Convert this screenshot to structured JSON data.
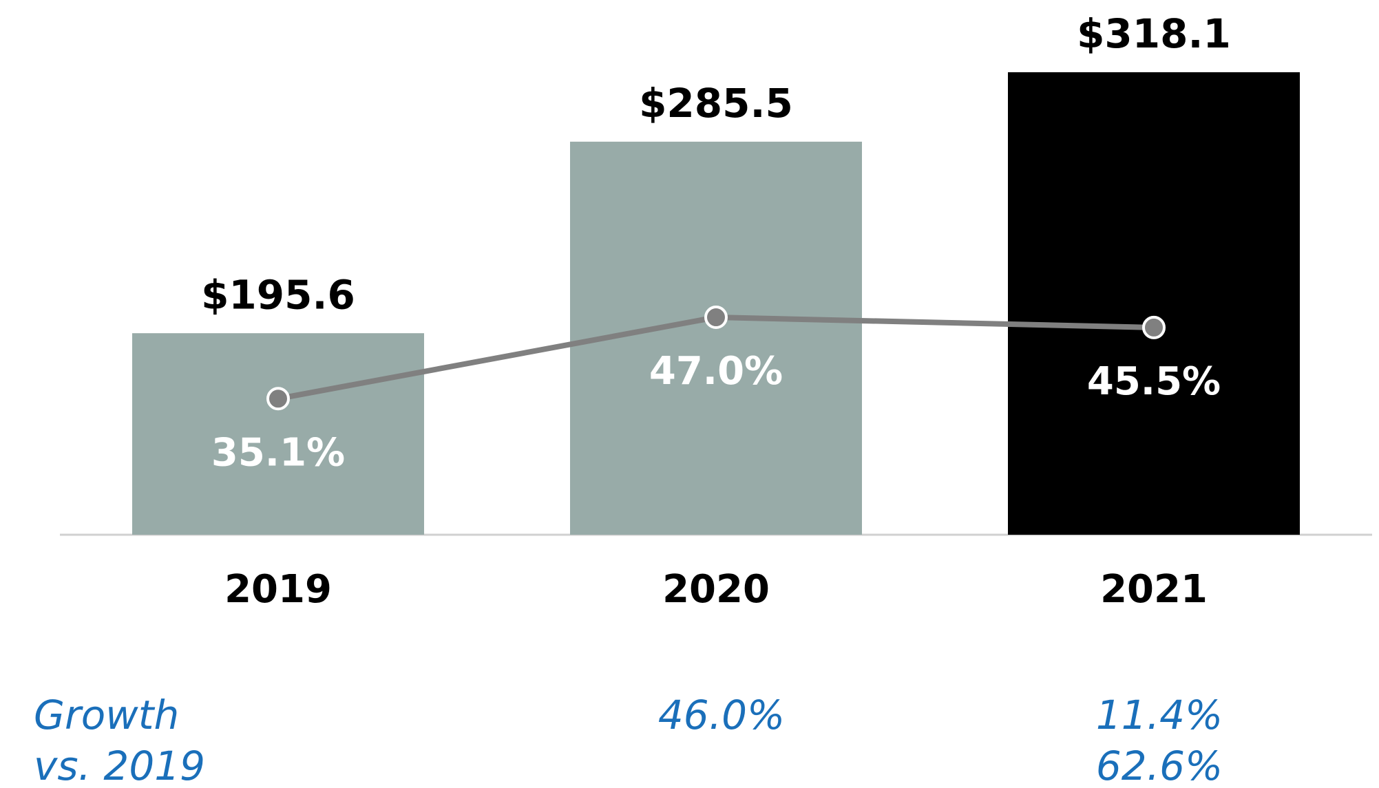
{
  "chart_data": {
    "type": "bar",
    "categories": [
      "2019",
      "2020",
      "2021"
    ],
    "ylim": [
      101,
      352
    ],
    "y2lim": [
      15.2,
      93.4
    ],
    "series": [
      {
        "name": null,
        "type": "bar",
        "colors": [
          "#98aba8",
          "#98aba8",
          "#000000"
        ],
        "values": [
          195.6,
          285.5,
          318.1
        ],
        "value_labels": [
          "$195.6",
          "$285.5",
          "$318.1"
        ]
      },
      {
        "name": null,
        "type": "line",
        "axis": "y2",
        "color": "#808080",
        "values": [
          35.1,
          47.0,
          45.5
        ],
        "value_labels": [
          "35.1%",
          "47.0%",
          "45.5%"
        ]
      }
    ],
    "rows": [
      {
        "name": "Growth",
        "color": "#1a6fba",
        "values": [
          null,
          46.0,
          11.4
        ],
        "value_labels": [
          null,
          "46.0%",
          "11.4%"
        ]
      },
      {
        "name": "vs. 2019",
        "color": "#1a6fba",
        "values": [
          null,
          null,
          62.6
        ],
        "value_labels": [
          null,
          null,
          "62.6%"
        ]
      }
    ]
  }
}
